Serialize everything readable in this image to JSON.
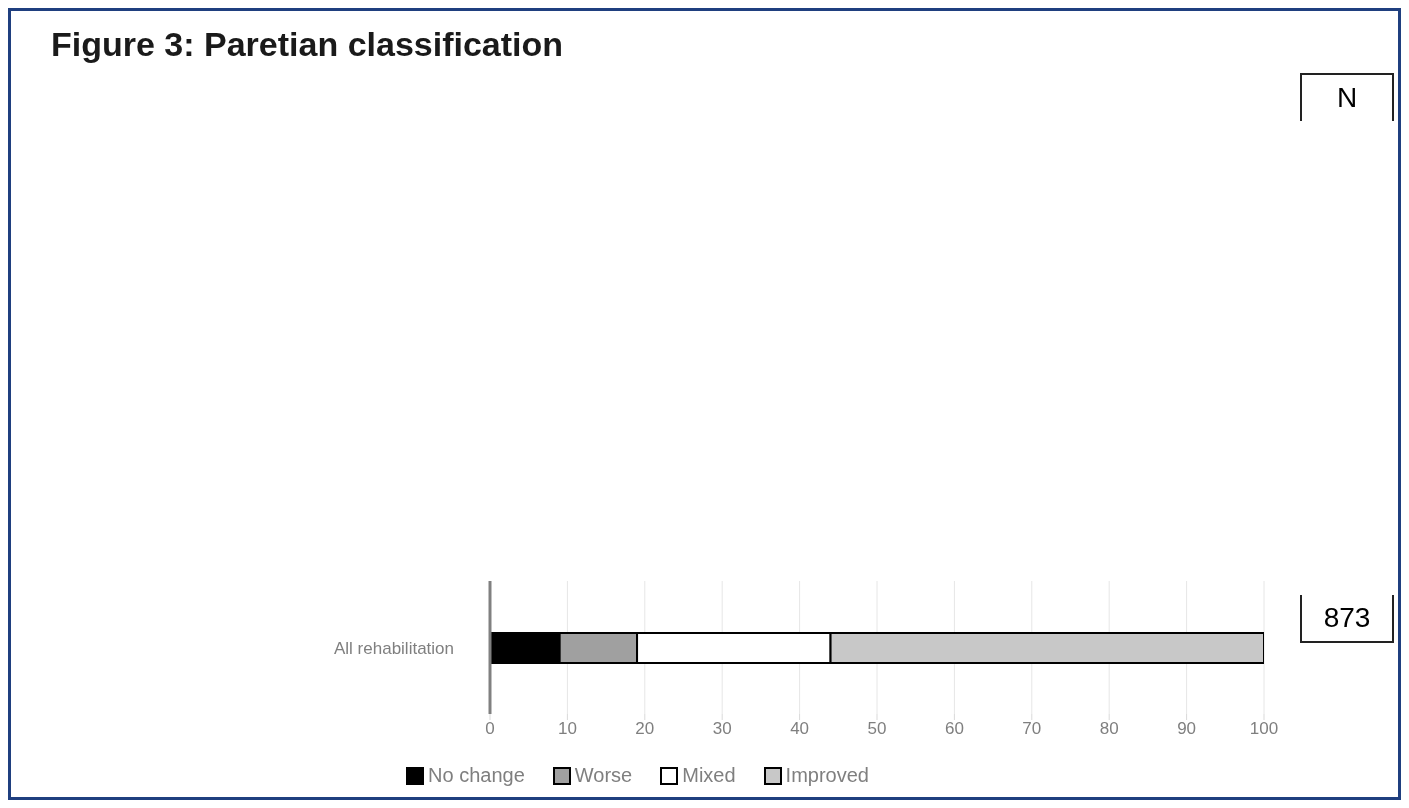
{
  "chart_data": {
    "type": "bar",
    "title": "Figure 3: Paretian classification",
    "orientation": "horizontal",
    "stacked": true,
    "categories": [
      "All rehabilitation"
    ],
    "series": [
      {
        "name": "No change",
        "color": "#000000",
        "values": [
          9
        ]
      },
      {
        "name": "Worse",
        "color": "#a0a0a0",
        "values": [
          10
        ]
      },
      {
        "name": "Mixed",
        "color": "#ffffff",
        "values": [
          25
        ]
      },
      {
        "name": "Improved",
        "color": "#c8c8c8",
        "values": [
          56
        ]
      }
    ],
    "xlim": [
      0,
      100
    ],
    "xticks": [
      0,
      10,
      20,
      30,
      40,
      50,
      60,
      70,
      80,
      90,
      100
    ],
    "grid": "x",
    "legend": "bottom",
    "annotations": [
      "N",
      "873"
    ]
  }
}
